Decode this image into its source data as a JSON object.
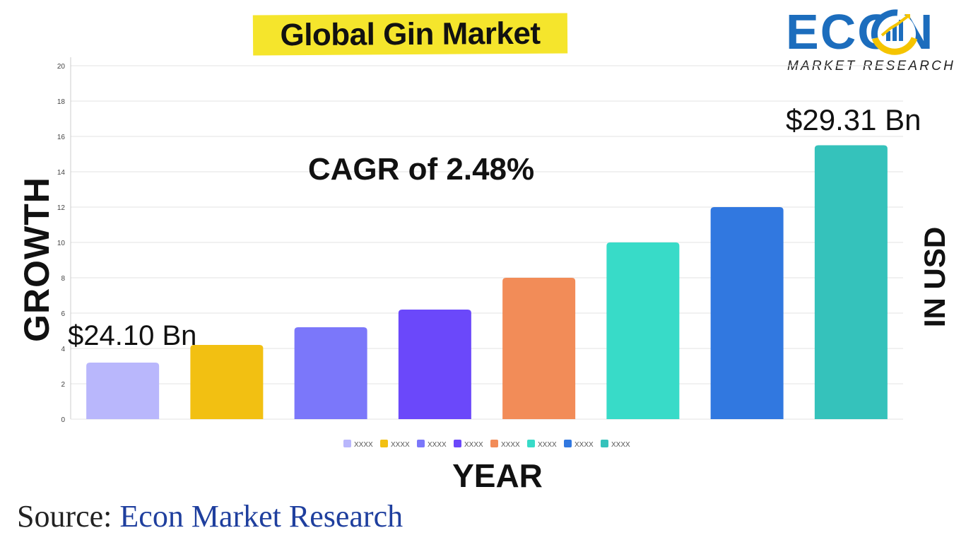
{
  "title": "Global Gin Market",
  "logo": {
    "word": "ECON",
    "subtitle": "MARKET RESEARCH",
    "icon": "bar-growth-icon",
    "colors": {
      "primary": "#1c6dbd",
      "accent": "#f5c400"
    }
  },
  "annotations": {
    "cagr": "CAGR of 2.48%",
    "start_value": "$24.10 Bn",
    "end_value": "$29.31 Bn"
  },
  "axes": {
    "ylabel": "GROWTH",
    "xlabel": "YEAR",
    "right_label": "IN USD"
  },
  "source": {
    "prefix": "Source:",
    "name": "Econ Market Research"
  },
  "chart_data": {
    "type": "bar",
    "title": "Global Gin Market",
    "xlabel": "YEAR",
    "ylabel": "GROWTH",
    "ylim": [
      0,
      20
    ],
    "yticks": [
      0,
      2,
      4,
      6,
      8,
      10,
      12,
      14,
      16,
      18,
      20
    ],
    "grid": true,
    "legend_position": "bottom",
    "categories": [
      "XXXX",
      "XXXX",
      "XXXX",
      "XXXX",
      "XXXX",
      "XXXX",
      "XXXX",
      "XXXX"
    ],
    "values": [
      3.2,
      4.2,
      5.2,
      6.2,
      8.0,
      10.0,
      12.0,
      15.5
    ],
    "colors": [
      "#b9b7fc",
      "#f2c012",
      "#7b77fa",
      "#6b48fa",
      "#f28c58",
      "#38dbc8",
      "#3178e0",
      "#35c2bb"
    ],
    "legend": [
      "XXXX",
      "XXXX",
      "XXXX",
      "XXXX",
      "XXXX",
      "XXXX",
      "XXXX",
      "XXXX"
    ]
  }
}
